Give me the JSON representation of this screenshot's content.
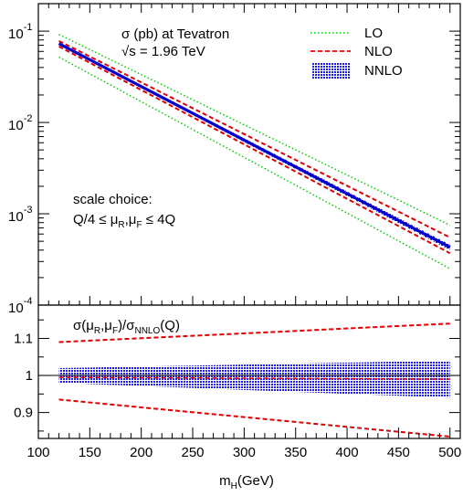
{
  "chart_data": [
    {
      "type": "line",
      "panel": "upper",
      "y_scale": "log",
      "xlim": [
        100,
        510
      ],
      "ylim": [
        0.0001,
        0.2
      ],
      "annotation": {
        "line1": "σ (pb) at Tevatron",
        "line2": "√s = 1.96 TeV",
        "scale_line1": "scale choice:",
        "scale_line2_parts": [
          "Q/4 ≤ μ",
          "R",
          ",μ",
          "F",
          " ≤ 4Q"
        ]
      },
      "y_tick_labels": [
        {
          "value": 0.1,
          "base": "10",
          "exp": "-1"
        },
        {
          "value": 0.01,
          "base": "10",
          "exp": "-2"
        },
        {
          "value": 0.001,
          "base": "10",
          "exp": "-3"
        },
        {
          "value": 0.0001,
          "base": "10",
          "exp": "-4"
        }
      ],
      "legend": [
        {
          "label": "LO",
          "style": "dotted",
          "color": "#00cc00"
        },
        {
          "label": "NLO",
          "style": "dashed",
          "color": "#e00000"
        },
        {
          "label": "NNLO",
          "style": "band",
          "color": "#1e1ee6"
        }
      ],
      "legend_position": "top-right",
      "x": [
        120,
        500
      ],
      "series": [
        {
          "name": "LO",
          "style": "dotted",
          "color": "#00cc00",
          "upper": [
            0.092,
            0.00075
          ],
          "lower": [
            0.052,
            0.00025
          ]
        },
        {
          "name": "NLO",
          "style": "dashed",
          "color": "#e00000",
          "upper": [
            0.078,
            0.00055
          ],
          "lower": [
            0.068,
            0.00037
          ]
        },
        {
          "name": "NNLO",
          "style": "band",
          "color": "#1e1ee6",
          "center": [
            0.073,
            0.00043
          ],
          "upper": [
            0.075,
            0.00046
          ],
          "lower": [
            0.071,
            0.0004
          ]
        }
      ]
    },
    {
      "type": "line",
      "panel": "lower",
      "xlim": [
        100,
        510
      ],
      "ylim": [
        0.83,
        1.19
      ],
      "label_parts": [
        "σ(μ",
        "R",
        ",μ",
        "F",
        ")/σ",
        "NNLO",
        "(Q)"
      ],
      "x_ticks": [
        100,
        150,
        200,
        250,
        300,
        350,
        400,
        450,
        500
      ],
      "x_tick_labels": [
        "100",
        "150",
        "200",
        "250",
        "300",
        "350",
        "400",
        "450",
        "500"
      ],
      "y_ticks": [
        0.9,
        1,
        1.1
      ],
      "y_tick_labels": [
        "0.9",
        "1",
        "1.1"
      ],
      "xlabel_parts": [
        "m",
        "H",
        "(GeV)"
      ],
      "reference_line": 1.0,
      "x": [
        120,
        500
      ],
      "series": [
        {
          "name": "NLO",
          "style": "dashed",
          "color": "#e00000",
          "upper": [
            1.09,
            1.14
          ],
          "lower": [
            0.935,
            0.835
          ]
        },
        {
          "name": "NNLO",
          "style": "band",
          "color": "#1e1ee6",
          "upper": [
            1.02,
            1.04
          ],
          "lower": [
            0.98,
            0.94
          ],
          "center": [
            0.995,
            0.99
          ]
        }
      ]
    }
  ]
}
